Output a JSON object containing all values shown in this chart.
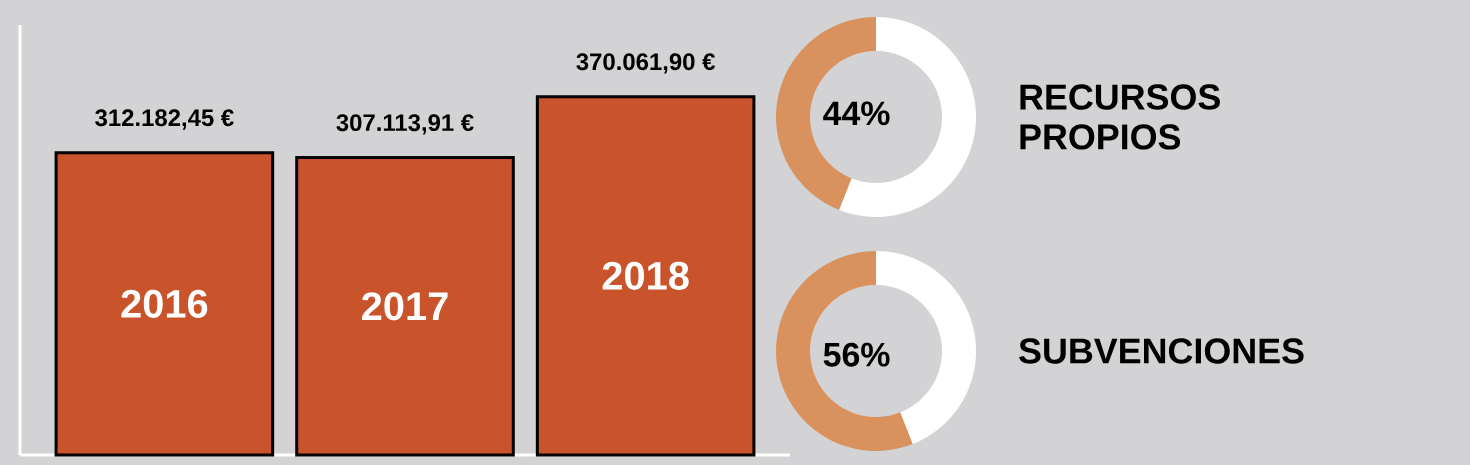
{
  "chart_data": [
    {
      "type": "bar",
      "categories": [
        "2016",
        "2017",
        "2018"
      ],
      "values": [
        312182.45,
        307113.91,
        370061.9
      ],
      "value_labels": [
        "312.182,45 €",
        "307.113,91 €",
        "370.061,90 €"
      ],
      "color": "#c9532a"
    },
    {
      "type": "donut",
      "title": "RECURSOS PROPIOS",
      "categories": [
        null,
        null
      ],
      "values": [
        44,
        56
      ],
      "colors": [
        "#d9925e",
        "#ffffff"
      ],
      "value_labels": [
        "44%",
        null
      ]
    },
    {
      "type": "donut",
      "title": "SUBVENCIONES",
      "categories": [
        null,
        null
      ],
      "values": [
        56,
        44
      ],
      "colors": [
        "#d9925e",
        "#ffffff"
      ],
      "value_labels": [
        "56%",
        null
      ]
    }
  ]
}
